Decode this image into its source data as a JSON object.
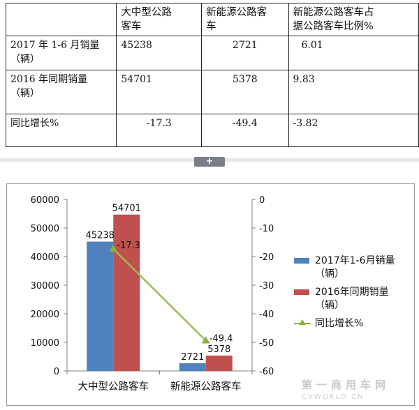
{
  "table": {
    "headers": [
      "",
      "大中型公路\n客车",
      "新能源公路客\n车",
      "新能源公路客车占\n据公路客车比例%"
    ],
    "rows": [
      {
        "label": "2017年1-6月销量\n（辆）",
        "values": [
          "45238",
          "2721",
          "6.01"
        ]
      },
      {
        "label": "2016年同期销量\n（辆）",
        "values": [
          "54701",
          "5378",
          "9.83"
        ]
      },
      {
        "label": "同比增长%",
        "values": [
          "-17.3",
          "-49.4",
          "-3.82"
        ]
      }
    ]
  },
  "expand_button": "+",
  "chart_data": {
    "type": "bar",
    "categories": [
      "大中型公路客车",
      "新能源公路客车"
    ],
    "series": [
      {
        "name": "2017年1-6月销量（辆）",
        "kind": "bar",
        "axis": "left",
        "color": "#4f81bd",
        "values": [
          45238,
          2721
        ]
      },
      {
        "name": "2016年同期销量（辆）",
        "kind": "bar",
        "axis": "left",
        "color": "#c0504d",
        "values": [
          54701,
          5378
        ]
      },
      {
        "name": "同比增长%",
        "kind": "line",
        "axis": "right",
        "color": "#9bbb59",
        "values": [
          -17.3,
          -49.4
        ]
      }
    ],
    "left_axis": {
      "min": 0,
      "max": 60000,
      "ticks": [
        "0",
        "10000",
        "20000",
        "30000",
        "40000",
        "50000",
        "60000"
      ]
    },
    "right_axis": {
      "min": -60,
      "max": 0,
      "ticks": [
        "0",
        "-10",
        "-20",
        "-30",
        "-40",
        "-50",
        "-60"
      ]
    },
    "data_labels": {
      "bar_2017": [
        "45238",
        "2721"
      ],
      "bar_2016": [
        "54701",
        "5378"
      ],
      "line": [
        "-17.3",
        "-49.4"
      ]
    },
    "legend_position": "right",
    "grid": false
  },
  "legend": [
    {
      "text": "2017年1-6月销量\n（辆）",
      "type": "bar",
      "color": "#4f81bd"
    },
    {
      "text": "2016年同期销量\n（辆）",
      "type": "bar",
      "color": "#c0504d"
    },
    {
      "text": "同比增长%",
      "type": "line",
      "color": "#9bbb59"
    }
  ],
  "watermark": {
    "line1": "第一商用车网",
    "line2": "CVWORLD.CN"
  }
}
